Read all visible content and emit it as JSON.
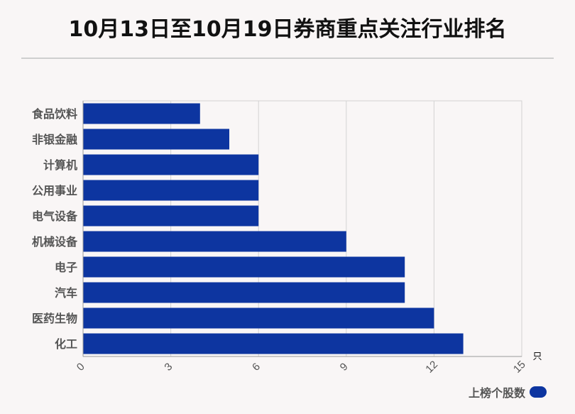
{
  "title": "10月13日至10月19日券商重点关注行业排名",
  "colors": {
    "bar": "#0d35a0",
    "grid": "#d3d3d3",
    "axis": "#999999",
    "label": "#555555"
  },
  "chart_data": {
    "type": "bar",
    "orientation": "horizontal",
    "title": "10月13日至10月19日券商重点关注行业排名",
    "categories": [
      "食品饮料",
      "非银金融",
      "计算机",
      "公用事业",
      "电气设备",
      "机械设备",
      "电子",
      "汽车",
      "医药生物",
      "化工"
    ],
    "series": [
      {
        "name": "上榜个股数",
        "values": [
          4,
          5,
          6,
          6,
          6,
          9,
          11,
          11,
          12,
          13
        ]
      }
    ],
    "xlim": [
      0,
      15
    ],
    "xticks": [
      0,
      3,
      6,
      9,
      12,
      15
    ],
    "xticklabels": [
      "0",
      "3",
      "6",
      "9",
      "12",
      "15"
    ],
    "unit": "只",
    "grid": true,
    "legend": "bottom-right"
  }
}
